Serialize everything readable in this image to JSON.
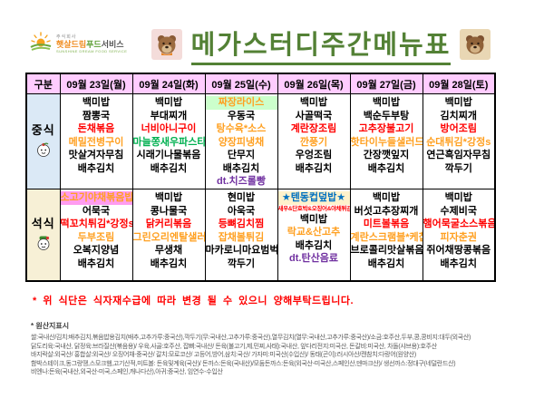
{
  "company": {
    "small": "주식회사",
    "name_part1": "햇살드림",
    "name_part2": "푸드",
    "name_part3": "서비스",
    "en": "SUNSHINE DREAM FOOD SERVICE"
  },
  "title": "메가스터디주간메뉴표",
  "palette": {
    "title_green": "#538135",
    "header_pink": "#ffccff",
    "red": "#ff0000",
    "orange": "#ffa021",
    "green": "#00b050",
    "blue": "#0070c0",
    "purple": "#7030a0",
    "highlight_green": "#ccffcc",
    "highlight_yellow": "#fff2cc",
    "highlight_pink": "#ff9cf0",
    "lunch_label_bg": "#dbe9f6",
    "dinner_label_bg": "#f7f0d6"
  },
  "table": {
    "corner": "구분",
    "dates": [
      "09월 23일(월)",
      "09월 24일(화)",
      "09월 25일(수)",
      "09월 26일(목)",
      "09월 27일(금)",
      "09월 28일(토)"
    ],
    "rows": [
      {
        "label": "중식",
        "icon": "lunch-mascot-icon",
        "cells": [
          [
            {
              "t": "백미밥"
            },
            {
              "t": "짬뽕국"
            },
            {
              "t": "돈채볶음",
              "c": "red"
            },
            {
              "t": "메밀전병구이",
              "c": "orange"
            },
            {
              "t": "맛살겨자무침"
            },
            {
              "t": "배추김치"
            }
          ],
          [
            {
              "t": "백미밥"
            },
            {
              "t": "부대찌개"
            },
            {
              "t": "너비아니구이",
              "c": "red"
            },
            {
              "t": "마늘쫑새우파스타",
              "c": "green"
            },
            {
              "t": "시래기나물볶음"
            },
            {
              "t": "배추김치"
            }
          ],
          [
            {
              "t": "짜장라이스",
              "c": "orange",
              "bg": "green"
            },
            {
              "t": "우동국"
            },
            {
              "t": "탕수육*소스",
              "c": "orange"
            },
            {
              "t": "양장피냉채",
              "c": "orange"
            },
            {
              "t": "단무지"
            },
            {
              "t": "배추김치"
            },
            {
              "t": "dt.치즈롤빵",
              "c": "purple"
            }
          ],
          [
            {
              "t": "백미밥"
            },
            {
              "t": "사골떡국"
            },
            {
              "t": "계란장조림",
              "c": "red"
            },
            {
              "t": "깐풍기",
              "c": "orange"
            },
            {
              "t": "우엉조림"
            },
            {
              "t": "배추김치"
            }
          ],
          [
            {
              "t": "백미밥"
            },
            {
              "t": "백순두부탕"
            },
            {
              "t": "고추장불고기",
              "c": "red"
            },
            {
              "t": "핫타이누들샐러드",
              "c": "orange"
            },
            {
              "t": "간장깻잎지"
            },
            {
              "t": "배추김치"
            }
          ],
          [
            {
              "t": "백미밥"
            },
            {
              "t": "김치찌개"
            },
            {
              "t": "방어조림",
              "c": "red"
            },
            {
              "t": "순대튀김*강정s",
              "c": "orange"
            },
            {
              "t": "연근흑임자무침"
            },
            {
              "t": "깍두기"
            }
          ]
        ]
      },
      {
        "label": "석식",
        "icon": "dinner-mascot-icon",
        "cells": [
          [
            {
              "t": "소고기야채볶음밥",
              "c": "orange",
              "bg": "pink"
            },
            {
              "t": "어묵국"
            },
            {
              "t": "떡꼬치튀김*강정s",
              "c": "red"
            },
            {
              "t": "두부조림",
              "c": "orange"
            },
            {
              "t": "오복지양념"
            },
            {
              "t": "배추김치"
            }
          ],
          [
            {
              "t": "백미밥"
            },
            {
              "t": "콩나물국"
            },
            {
              "t": "닭커리볶음",
              "c": "red"
            },
            {
              "t": "그린오리엔탈샐러드",
              "c": "orange"
            },
            {
              "t": "무생채"
            },
            {
              "t": "배추김치"
            }
          ],
          [
            {
              "t": "현미밥"
            },
            {
              "t": "아욱국"
            },
            {
              "t": "등뼈김치찜",
              "c": "red"
            },
            {
              "t": "잡채볼튀김",
              "c": "orange"
            },
            {
              "t": "마카로니마요범벅"
            },
            {
              "t": "깍두기"
            }
          ],
          [
            {
              "t": "★텐동컵덮밥★",
              "c": "blue",
              "bg": "yellow"
            },
            {
              "t": "새우&단호박&오징어&야채튀김",
              "c": "red",
              "sm": true
            },
            {
              "t": "백미밥"
            },
            {
              "t": "락교&산고추",
              "c": "orange"
            },
            {
              "t": "배추김치"
            },
            {
              "t": "dt.탄산음료",
              "c": "purple"
            }
          ],
          [
            {
              "t": "백미밥"
            },
            {
              "t": "버섯고추장찌개"
            },
            {
              "t": "미트볼볶음",
              "c": "red"
            },
            {
              "t": "계란스크램블*케찹",
              "c": "orange"
            },
            {
              "t": "브로콜리맛살볶음"
            },
            {
              "t": "배추김치"
            }
          ],
          [
            {
              "t": "백미밥"
            },
            {
              "t": "수제비국"
            },
            {
              "t": "햄어묵굴소스볶음",
              "c": "red"
            },
            {
              "t": "피자춘권",
              "c": "orange"
            },
            {
              "t": "쥐어채땅콩볶음"
            },
            {
              "t": "배추김치"
            }
          ]
        ]
      }
    ]
  },
  "notice": "* 위 식단은 식자재수급에 따라 변경 될 수 있으니 양해부탁드립니다.",
  "origin": {
    "heading": "* 원산지표시",
    "lines": [
      "쌀:국내산/김치:배추김치,볶음밥용김치(배추,고추가루:중국산),깍두기(무:국내산,고추가루:중국산),열무김치(열무:국내산,고추가루:중국산)/소금:호주산,두부,콩,콩비지:대두(외국산)",
      "닭도리육:국내산, 닭정육:브라질산(볶음용)/ 우육,사골:호주산, 잡뼈:국내산/ 돈육(불고기,제,민찌,사태):국내산, 앞다리전지:미국산, 돈갈비:미국산, 차돌(샤브용):호주산",
      "바지락살:외국산/ 홍합살:외국산/ 오징어채-중국산/ 갈치:모로코산/ 고등어,방어,삼치:국산/ 가자미:미국산(수입산)/ 동태(곤이):러시아산/캔참치:다랑어(원양산)",
      "함박스테이크,동그랑땡,스모크햄,고기산적,미트볼: 돈육및계육(국산)/ 돈까스:돈육(국내산)/모둠돈까스:돈육(외국산-미국산,스페인산,덴마크산)/ 생선까스:정대구(네덜란드산)",
      "비엔나:돈육(국내산,외국산-미국,스페인,캐나다산),아귀:중국산, 임연수-수입산"
    ]
  }
}
